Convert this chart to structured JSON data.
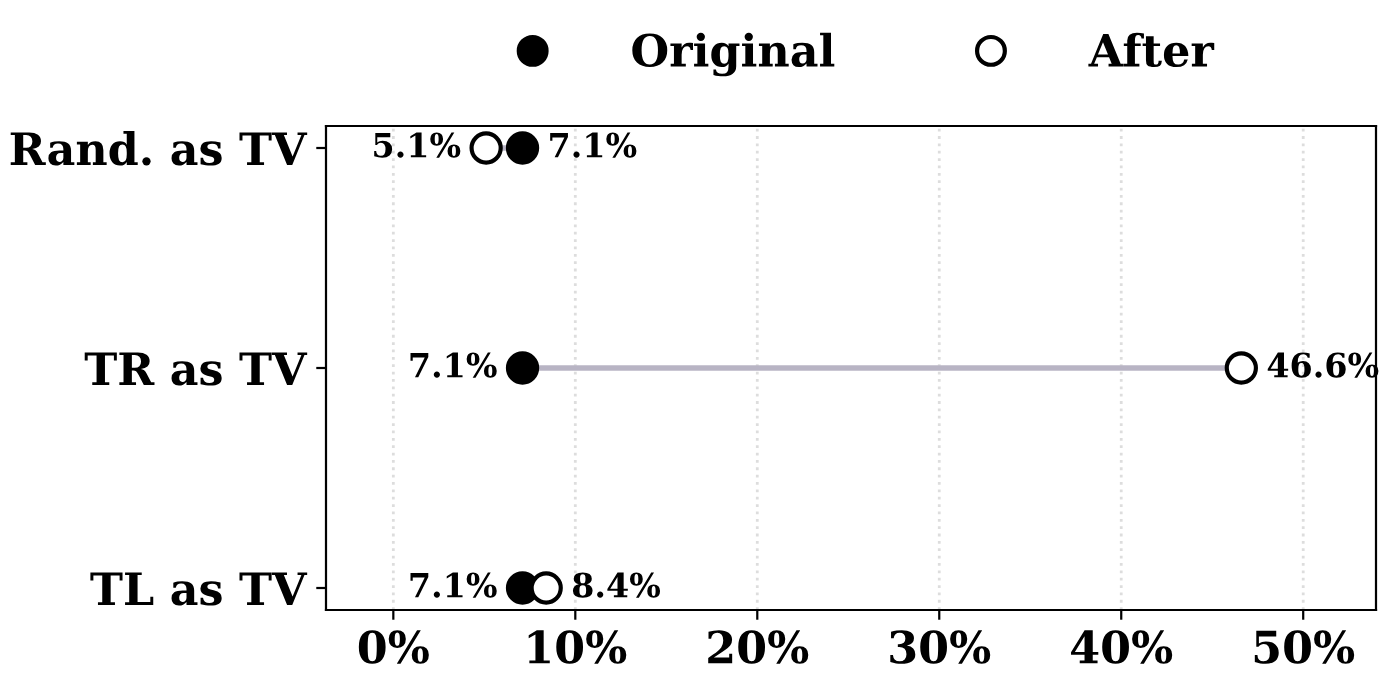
{
  "chart_data": {
    "type": "scatter",
    "orientation": "horizontal",
    "categories": [
      "Rand. as TV",
      "TR as TV",
      "TL as TV"
    ],
    "series": [
      {
        "name": "Original",
        "color": "#000000",
        "values": [
          7.1,
          7.1,
          7.1
        ],
        "value_labels": [
          "7.1%",
          "7.1%",
          "7.1%"
        ]
      },
      {
        "name": "After",
        "color": "#ffffff",
        "values": [
          5.1,
          46.6,
          8.4
        ],
        "value_labels": [
          "5.1%",
          "46.6%",
          "8.4%"
        ]
      }
    ],
    "xlim": [
      -3.7,
      54
    ],
    "xticks": [
      {
        "value": 0,
        "label": "0%"
      },
      {
        "value": 10,
        "label": "10%"
      },
      {
        "value": 20,
        "label": "20%"
      },
      {
        "value": 30,
        "label": "30%"
      },
      {
        "value": 40,
        "label": "40%"
      },
      {
        "value": 50,
        "label": "50%"
      }
    ],
    "grid": "x",
    "legend": "top",
    "marker": "circle"
  }
}
